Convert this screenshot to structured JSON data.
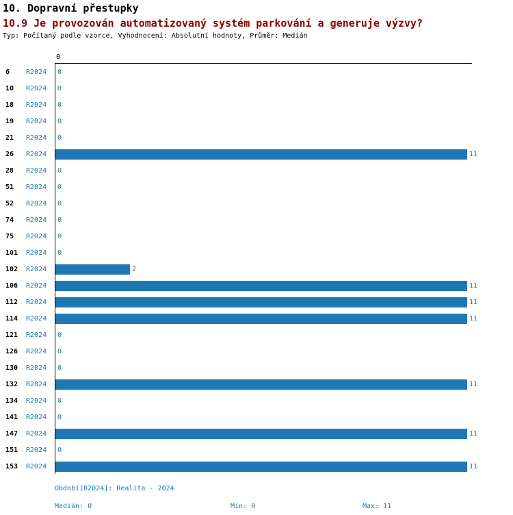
{
  "chart_data": {
    "type": "bar",
    "orientation": "horizontal",
    "title": "10. Dopravní přestupky",
    "subtitle": "10.9 Je provozován automatizovaný systém parkování a generuje výzvy?",
    "meta": "Typ: Počítaný podle vzorce, Vyhodnocení: Absolutní hodnoty, Průměr: Medián",
    "categories": [
      "6",
      "10",
      "18",
      "19",
      "21",
      "26",
      "28",
      "51",
      "52",
      "74",
      "75",
      "101",
      "102",
      "106",
      "112",
      "114",
      "121",
      "126",
      "130",
      "132",
      "134",
      "141",
      "147",
      "151",
      "153"
    ],
    "series": [
      {
        "name": "R2024",
        "values": [
          0,
          0,
          0,
          0,
          0,
          11,
          0,
          0,
          0,
          0,
          0,
          0,
          2,
          11,
          11,
          11,
          0,
          0,
          0,
          11,
          0,
          0,
          11,
          0,
          11
        ]
      }
    ],
    "xlim": [
      0,
      11
    ],
    "x_ticks": [
      "0"
    ],
    "grid": false,
    "legend_position": "none",
    "bar_color": "#1f77b4"
  },
  "footer": {
    "period": "Období[R2024]: Realita - 2024",
    "median": "Medián: 0",
    "min": "Min: 0",
    "max": "Max: 11"
  },
  "colors": {
    "bar": "#1f77b4",
    "label_blue": "#1f77b4",
    "subtitle_red": "#8b0000",
    "axis_black": "#000000"
  }
}
